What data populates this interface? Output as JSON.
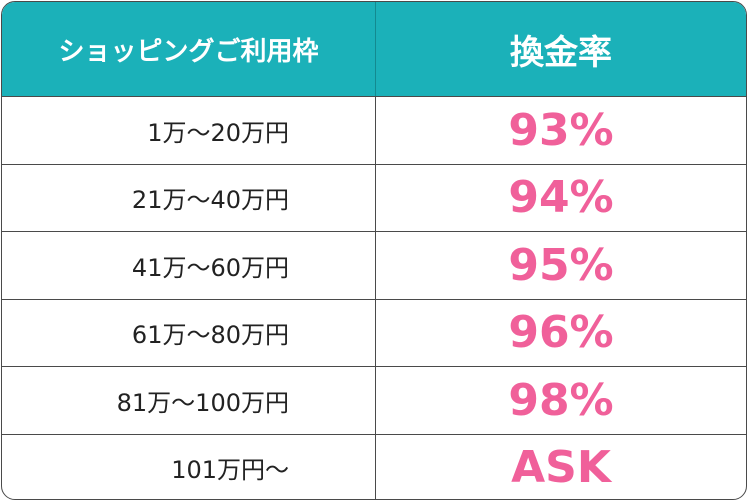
{
  "table": {
    "header": [
      "ショッピングご利用枠",
      "換金率"
    ],
    "rows": [
      [
        "1万〜20万円",
        "93%"
      ],
      [
        "21万〜40万円",
        "94%"
      ],
      [
        "41万〜60万円",
        "95%"
      ],
      [
        "61万〜80万円",
        "96%"
      ],
      [
        "81万〜100万円",
        "98%"
      ],
      [
        "101万円〜",
        "ASK"
      ]
    ]
  }
}
